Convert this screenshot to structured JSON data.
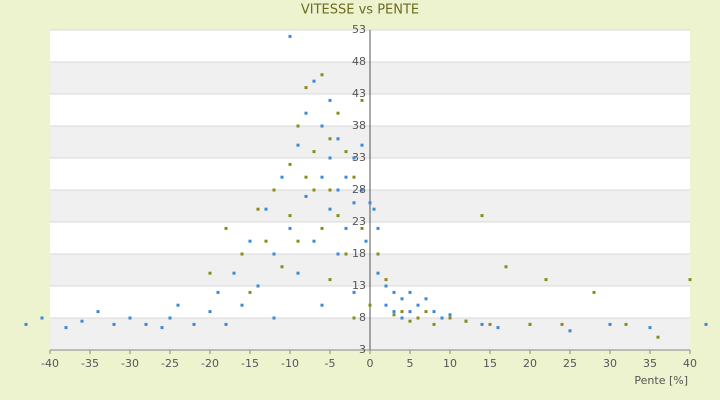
{
  "chart_data": {
    "type": "scatter",
    "title": "VITESSE vs PENTE",
    "x_label": "Pente [%]",
    "xlim": [
      -40,
      40
    ],
    "xticks": [
      -40,
      -35,
      -30,
      -25,
      -20,
      -15,
      -10,
      -5,
      0,
      5,
      10,
      15,
      20,
      25,
      30,
      35,
      40
    ],
    "ylim": [
      3,
      53
    ],
    "yticks": [
      3,
      8,
      13,
      18,
      23,
      28,
      33,
      38,
      43,
      48,
      53
    ],
    "grid": true,
    "series": [
      {
        "color": "#3a8ad8",
        "x": [
          -43,
          -41,
          -38,
          -36,
          -34,
          -32,
          -30,
          -28,
          -26,
          -25,
          -24,
          -22,
          -20,
          -19,
          -18,
          -17,
          -16,
          -15,
          -14,
          -13,
          -12,
          -12,
          -11,
          -10,
          -10,
          -9,
          -9,
          -8,
          -8,
          -7,
          -7,
          -6,
          -6,
          -6,
          -5,
          -5,
          -5,
          -4,
          -4,
          -4,
          -3,
          -3,
          -2,
          -2,
          -2,
          -1,
          -1,
          -0.5,
          0,
          0.5,
          1,
          1,
          2,
          2,
          3,
          3,
          4,
          4,
          5,
          5,
          6,
          6,
          7,
          8,
          9,
          10,
          12,
          14,
          16,
          20,
          25,
          30,
          35,
          42
        ],
        "values": [
          7,
          8,
          6.5,
          7.5,
          9,
          7,
          8,
          7,
          6.5,
          8,
          10,
          7,
          9,
          12,
          7,
          15,
          10,
          20,
          13,
          25,
          18,
          8,
          30,
          22,
          52,
          35,
          15,
          40,
          27,
          45,
          20,
          38,
          30,
          10,
          42,
          33,
          25,
          36,
          28,
          18,
          30,
          22,
          33,
          26,
          12,
          35,
          28,
          20,
          26,
          25,
          22,
          15,
          13,
          10,
          12,
          9,
          11,
          8,
          12,
          9,
          10,
          8,
          11,
          9,
          8,
          8.5,
          7.5,
          7,
          6.5,
          7,
          6,
          7,
          6.5,
          7
        ]
      },
      {
        "color": "#8a8a1a",
        "x": [
          -20,
          -18,
          -16,
          -15,
          -14,
          -13,
          -12,
          -11,
          -10,
          -10,
          -9,
          -9,
          -8,
          -8,
          -7,
          -7,
          -6,
          -6,
          -5,
          -5,
          -5,
          -4,
          -4,
          -3,
          -3,
          -2,
          -2,
          -1,
          -1,
          0,
          1,
          2,
          3,
          4,
          5,
          6,
          7,
          8,
          10,
          12,
          14,
          15,
          17,
          20,
          22,
          24,
          28,
          32,
          36,
          40
        ],
        "values": [
          15,
          22,
          18,
          12,
          25,
          20,
          28,
          16,
          32,
          24,
          38,
          20,
          44,
          30,
          28,
          34,
          46,
          22,
          36,
          28,
          14,
          40,
          24,
          34,
          18,
          30,
          8,
          42,
          22,
          10,
          18,
          14,
          8.5,
          9,
          7.5,
          8,
          9,
          7,
          8,
          7.5,
          24,
          7,
          16,
          7,
          14,
          7,
          12,
          7,
          5,
          14
        ]
      }
    ]
  }
}
